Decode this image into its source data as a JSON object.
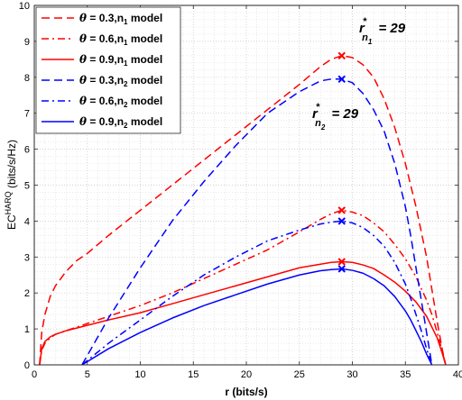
{
  "chart_data": {
    "type": "line",
    "xlabel": "r (bits/s)",
    "ylabel": "EC^HARQ (bits/s/Hz)",
    "ylabel_main": "EC",
    "ylabel_sup": "HARQ",
    "ylabel_rest": " (bits/s/Hz)",
    "xlim": [
      0,
      40
    ],
    "ylim": [
      0,
      10
    ],
    "xticks": [
      0,
      5,
      10,
      15,
      20,
      25,
      30,
      35,
      40
    ],
    "yticks": [
      0,
      1,
      2,
      3,
      4,
      5,
      6,
      7,
      8,
      9,
      10
    ],
    "grid": true,
    "grid_minor": true,
    "legend_position": "top-left",
    "series": [
      {
        "name": "θ = 0.3,n1 model",
        "legend": {
          "sym": "θ",
          "pre": " = 0.3,n",
          "sub": "1",
          "post": " model"
        },
        "color": "#ff0000",
        "style": "dashed",
        "x": [
          0.5,
          0.7,
          1,
          1.5,
          2,
          3,
          4,
          5,
          7,
          10,
          13,
          16,
          19,
          22,
          25,
          27,
          28,
          29,
          30,
          31,
          32,
          33,
          34,
          35,
          36,
          37,
          37.5,
          38,
          38.5,
          38.8
        ],
        "y": [
          0,
          0.9,
          1.4,
          1.9,
          2.2,
          2.6,
          2.9,
          3.1,
          3.6,
          4.3,
          5.0,
          5.7,
          6.4,
          7.1,
          7.8,
          8.3,
          8.5,
          8.6,
          8.55,
          8.35,
          8.0,
          7.4,
          6.6,
          5.6,
          4.4,
          3.0,
          2.1,
          1.2,
          0.4,
          0
        ],
        "marker": {
          "x": 29,
          "y": 8.6
        }
      },
      {
        "name": "θ = 0.6,n1 model",
        "legend": {
          "sym": "θ",
          "pre": " = 0.6,n",
          "sub": "1",
          "post": " model"
        },
        "color": "#ff0000",
        "style": "dashdot",
        "x": [
          0.5,
          0.7,
          1,
          1.5,
          2,
          3,
          5,
          7,
          10,
          13,
          16,
          19,
          22,
          25,
          27,
          28,
          29,
          30,
          31,
          32,
          33,
          34,
          35,
          36,
          37,
          37.5,
          38,
          38.5,
          38.8
        ],
        "y": [
          0,
          0.4,
          0.6,
          0.75,
          0.85,
          0.95,
          1.15,
          1.35,
          1.65,
          2.0,
          2.4,
          2.8,
          3.2,
          3.7,
          4.05,
          4.2,
          4.3,
          4.25,
          4.15,
          3.95,
          3.7,
          3.35,
          2.95,
          2.45,
          1.8,
          1.4,
          0.9,
          0.35,
          0
        ],
        "marker": {
          "x": 29,
          "y": 4.3
        }
      },
      {
        "name": "θ = 0.9,n1 model",
        "legend": {
          "sym": "θ",
          "pre": " = 0.9,n",
          "sub": "1",
          "post": " model"
        },
        "color": "#ff0000",
        "style": "solid",
        "x": [
          0.5,
          0.7,
          1,
          1.5,
          2,
          3,
          5,
          7,
          10,
          13,
          16,
          19,
          22,
          25,
          27,
          28,
          29,
          30,
          31,
          32,
          33,
          34,
          35,
          36,
          37,
          37.5,
          38,
          38.5,
          38.8
        ],
        "y": [
          0,
          0.45,
          0.65,
          0.78,
          0.85,
          0.95,
          1.1,
          1.25,
          1.45,
          1.7,
          1.95,
          2.2,
          2.45,
          2.7,
          2.8,
          2.85,
          2.87,
          2.85,
          2.78,
          2.68,
          2.5,
          2.3,
          2.05,
          1.75,
          1.35,
          1.05,
          0.75,
          0.3,
          0
        ],
        "marker": {
          "x": 29,
          "y": 2.87
        }
      },
      {
        "name": "θ = 0.3,n2 model",
        "legend": {
          "sym": "θ",
          "pre": " = 0.3,n",
          "sub": "2",
          "post": " model"
        },
        "color": "#0000ff",
        "style": "dashed",
        "x": [
          4.5,
          7,
          10,
          13,
          16,
          19,
          22,
          25,
          27,
          28,
          29,
          30,
          31,
          32,
          33,
          34,
          35,
          35.5,
          36,
          36.5,
          37,
          37.5
        ],
        "y": [
          0,
          1.3,
          2.7,
          4.0,
          5.1,
          6.1,
          7.0,
          7.6,
          7.9,
          7.95,
          7.95,
          7.85,
          7.55,
          7.1,
          6.5,
          5.6,
          4.4,
          3.6,
          2.7,
          1.8,
          0.9,
          0
        ],
        "marker": {
          "x": 29,
          "y": 7.95
        }
      },
      {
        "name": "θ = 0.6,n2 model",
        "legend": {
          "sym": "θ",
          "pre": " = 0.6,n",
          "sub": "2",
          "post": " model"
        },
        "color": "#0000ff",
        "style": "dashdot",
        "x": [
          4.5,
          7,
          10,
          13,
          16,
          19,
          22,
          25,
          27,
          28,
          29,
          30,
          31,
          32,
          33,
          34,
          35,
          35.5,
          36,
          36.5,
          37,
          37.5
        ],
        "y": [
          0,
          0.6,
          1.25,
          1.9,
          2.5,
          3.0,
          3.45,
          3.75,
          3.92,
          3.97,
          4.0,
          3.95,
          3.82,
          3.6,
          3.3,
          2.85,
          2.25,
          1.85,
          1.4,
          0.95,
          0.45,
          0
        ],
        "marker": {
          "x": 29,
          "y": 4.0
        }
      },
      {
        "name": "θ = 0.9,n2 model",
        "legend": {
          "sym": "θ",
          "pre": " = 0.9,n",
          "sub": "2",
          "post": " model"
        },
        "color": "#0000ff",
        "style": "solid",
        "x": [
          4.5,
          7,
          10,
          13,
          16,
          19,
          22,
          25,
          27,
          28,
          29,
          30,
          31,
          32,
          33,
          34,
          35,
          35.5,
          36,
          36.5,
          37,
          37.5
        ],
        "y": [
          0,
          0.45,
          0.9,
          1.3,
          1.65,
          1.95,
          2.25,
          2.5,
          2.62,
          2.65,
          2.67,
          2.63,
          2.55,
          2.4,
          2.2,
          1.9,
          1.5,
          1.25,
          0.95,
          0.65,
          0.3,
          0
        ],
        "marker": {
          "x": 29,
          "y": 2.67
        }
      }
    ],
    "annotations": [
      {
        "base": "r",
        "sup": "*",
        "sub": "n",
        "subsub": "1",
        "rest": " = 29"
      },
      {
        "base": "r",
        "sup": "*",
        "sub": "n",
        "subsub": "2",
        "rest": " = 29"
      }
    ]
  }
}
